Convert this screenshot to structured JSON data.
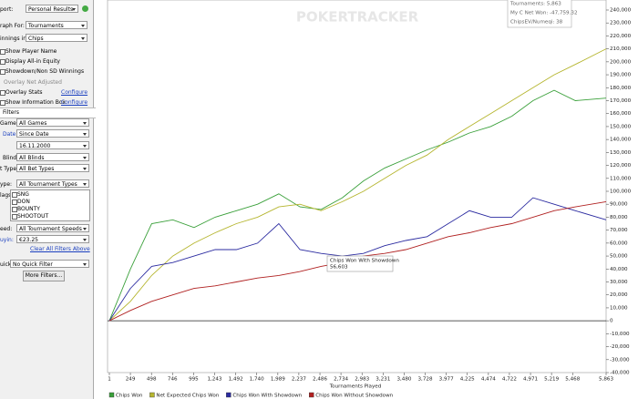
{
  "sidebar": {
    "report_label": "port:",
    "report_value": "Personal Results",
    "graph_for_label": "raph For:",
    "graph_for_value": "Tournaments",
    "winnings_label": "innings in:",
    "winnings_value": "Chips",
    "options": [
      "Show Player Name",
      "Display All-in Equity",
      "Showdown/Non SD Winnings",
      "Overlay Net Adjusted",
      "Overlay Stats",
      "Show Information Box"
    ],
    "configure": "Configure",
    "filters_title": "Filters",
    "game_label": "Game:",
    "game_value": "All Games",
    "date_label": "Date:",
    "date_value": "Since Date",
    "date_input": "16.11.2000",
    "blind_label": "Blind:",
    "blind_value": "All Blinds",
    "bet_label": "t Type:",
    "bet_value": "All Bet Types",
    "type_label": "ype:",
    "type_value": "All Tournament Types",
    "flags_label": "lags:",
    "flags": [
      "SNG",
      "DON",
      "BOUNTY",
      "SHOOTOUT"
    ],
    "speed_label": "eed:",
    "speed_value": "All Tournament Speeds",
    "buyin_label": "uyin:",
    "buyin_value": "€23.25",
    "clear": "Clear All Filters Above",
    "quick_label": "uick:",
    "quick_value": "No Quick Filter",
    "more": "More Filters..."
  },
  "chart_data": {
    "type": "line",
    "watermark": "POKERTRACKER",
    "x_label": "Tournaments Played",
    "info": [
      "Tournaments: 5,863",
      "My C Net Won: -47,759.32",
      "ChipsEV/Numeqi: 38"
    ],
    "tooltip": {
      "name": "Chips Won With Showdown",
      "value": "56,603"
    },
    "x": [
      1,
      250,
      500,
      750,
      1000,
      1250,
      1500,
      1750,
      2000,
      2250,
      2500,
      2750,
      3000,
      3250,
      3500,
      3750,
      4000,
      4250,
      4500,
      4750,
      5000,
      5250,
      5500,
      5863
    ],
    "series": [
      {
        "name": "Chips Won",
        "color": "#3aa03a",
        "values": [
          0,
          40000,
          75000,
          78000,
          72000,
          80000,
          85000,
          90000,
          98000,
          88000,
          86000,
          95000,
          108000,
          118000,
          125000,
          132000,
          138000,
          145000,
          150000,
          158000,
          170000,
          178000,
          170000,
          172000
        ]
      },
      {
        "name": "Net Expected Chips Won",
        "color": "#b5b52e",
        "values": [
          0,
          15000,
          35000,
          50000,
          60000,
          68000,
          75000,
          80000,
          88000,
          90000,
          85000,
          92000,
          100000,
          110000,
          120000,
          128000,
          140000,
          150000,
          160000,
          170000,
          180000,
          190000,
          198000,
          210000
        ]
      },
      {
        "name": "Chips Won With Showdown",
        "color": "#2b2ba0",
        "values": [
          0,
          25000,
          42000,
          45000,
          50000,
          55000,
          55000,
          60000,
          75000,
          55000,
          52000,
          50000,
          52000,
          58000,
          62000,
          65000,
          75000,
          85000,
          80000,
          80000,
          95000,
          90000,
          85000,
          78000
        ]
      },
      {
        "name": "Chips Won Without Showdown",
        "color": "#b02020",
        "values": [
          0,
          8000,
          15000,
          20000,
          25000,
          27000,
          30000,
          33000,
          35000,
          38000,
          42000,
          45000,
          50000,
          52000,
          55000,
          60000,
          65000,
          68000,
          72000,
          75000,
          80000,
          85000,
          88000,
          92000
        ]
      }
    ],
    "xlim": [
      1,
      5863
    ],
    "xticks": [
      1,
      249,
      498,
      746,
      995,
      {
        "value": 1243,
        "label": "1,243"
      },
      {
        "value": 1492,
        "label": "1,492"
      },
      {
        "value": 1740,
        "label": "1,740"
      },
      {
        "value": 1989,
        "label": "1,989"
      },
      {
        "value": 2237,
        "label": "2,237"
      },
      {
        "value": 2486,
        "label": "2,486"
      },
      {
        "value": 2734,
        "label": "2,734"
      },
      {
        "value": 2983,
        "label": "2,983"
      },
      {
        "value": 3231,
        "label": "3,231"
      },
      {
        "value": 3480,
        "label": "3,480"
      },
      {
        "value": 3728,
        "label": "3,728"
      },
      {
        "value": 3977,
        "label": "3,977"
      },
      {
        "value": 4225,
        "label": "4,225"
      },
      {
        "value": 4474,
        "label": "4,474"
      },
      {
        "value": 4722,
        "label": "4,722"
      },
      {
        "value": 4971,
        "label": "4,971"
      },
      {
        "value": 5219,
        "label": "5,219"
      },
      {
        "value": 5468,
        "label": "5,468"
      },
      {
        "value": 5863,
        "label": "5,863"
      }
    ],
    "ylim": [
      -40000,
      240000
    ],
    "yticks": [
      {
        "value": -40000,
        "label": "-40,000"
      },
      {
        "value": -30000,
        "label": "-30,000"
      },
      {
        "value": -20000,
        "label": "-20,000"
      },
      {
        "value": -10000,
        "label": "-10,000"
      },
      0,
      {
        "value": 10000,
        "label": "10,000"
      },
      {
        "value": 20000,
        "label": "20,000"
      },
      {
        "value": 30000,
        "label": "30,000"
      },
      {
        "value": 40000,
        "label": "40,000"
      },
      {
        "value": 50000,
        "label": "50,000"
      },
      {
        "value": 60000,
        "label": "60,000"
      },
      {
        "value": 70000,
        "label": "70,000"
      },
      {
        "value": 80000,
        "label": "80,000"
      },
      {
        "value": 90000,
        "label": "90,000"
      },
      {
        "value": 100000,
        "label": "100,000"
      },
      {
        "value": 110000,
        "label": "110,000"
      },
      {
        "value": 120000,
        "label": "120,000"
      },
      {
        "value": 130000,
        "label": "130,000"
      },
      {
        "value": 140000,
        "label": "140,000"
      },
      {
        "value": 150000,
        "label": "150,000"
      },
      {
        "value": 160000,
        "label": "160,000"
      },
      {
        "value": 170000,
        "label": "170,000"
      },
      {
        "value": 180000,
        "label": "180,000"
      },
      {
        "value": 190000,
        "label": "190,000"
      },
      {
        "value": 200000,
        "label": "200,000"
      },
      {
        "value": 210000,
        "label": "210,000"
      },
      {
        "value": 220000,
        "label": "220,000"
      },
      {
        "value": 230000,
        "label": "230,000"
      },
      {
        "value": 240000,
        "label": "240,000"
      }
    ]
  }
}
